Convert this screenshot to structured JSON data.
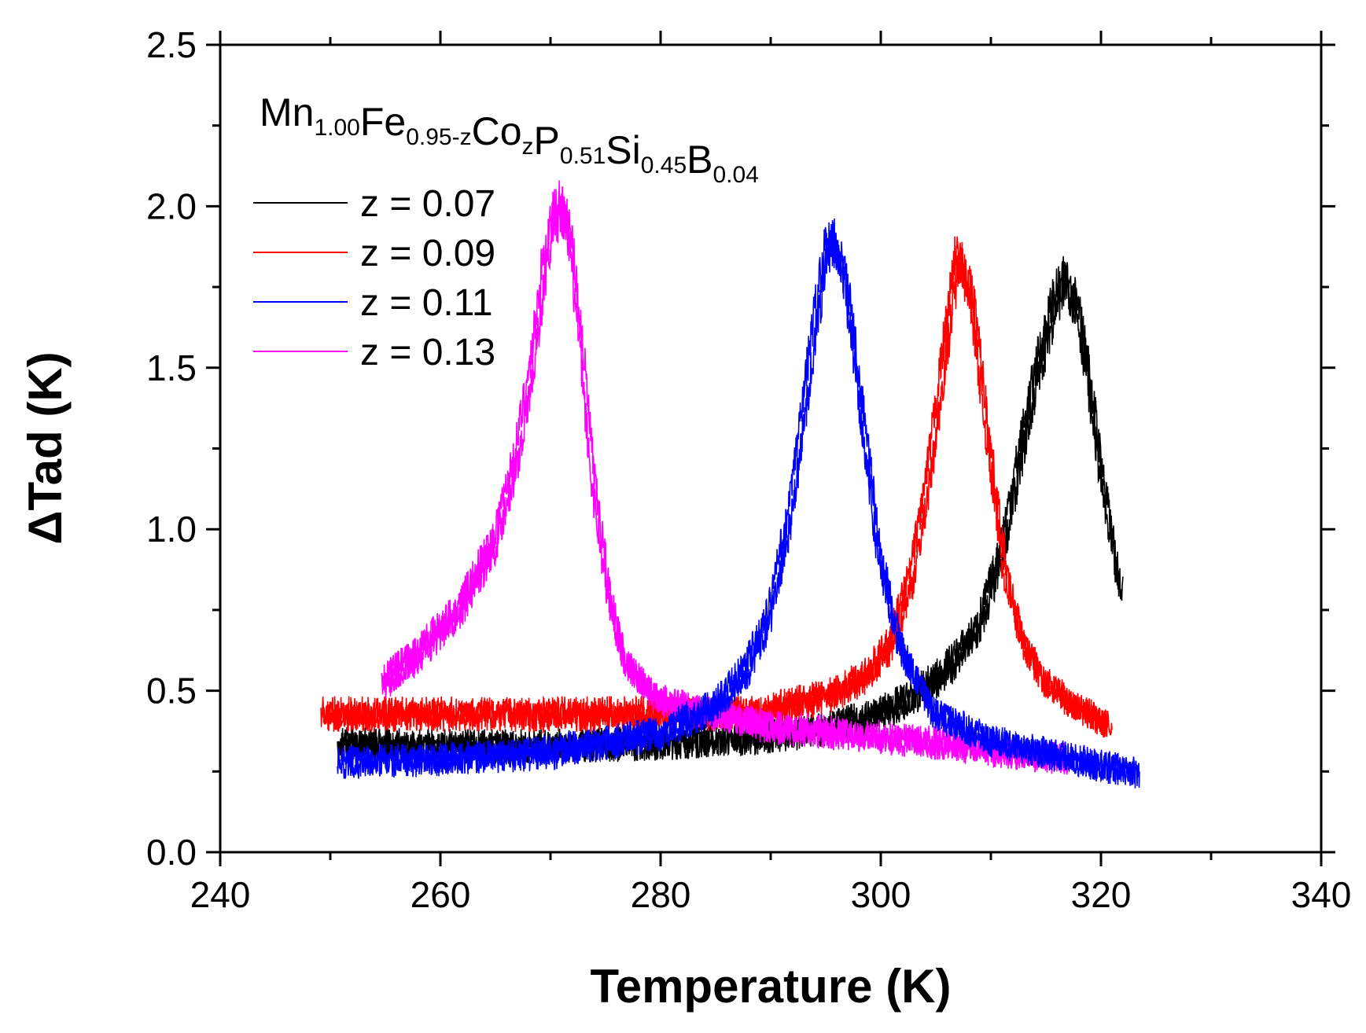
{
  "chart_data": {
    "type": "line",
    "title": "",
    "annotation": {
      "parts": [
        {
          "text": "Mn",
          "sub": "1.00"
        },
        {
          "text": "Fe",
          "sub": "0.95-z"
        },
        {
          "text": "Co",
          "sub": "z"
        },
        {
          "text": "P",
          "sub": "0.51"
        },
        {
          "text": "Si",
          "sub": "0.45"
        },
        {
          "text": "B",
          "sub": "0.04"
        }
      ]
    },
    "xlabel": "Temperature (K)",
    "ylabel": "ΔTad (K)",
    "xlim": [
      240,
      340
    ],
    "ylim": [
      0.0,
      2.5
    ],
    "xticks": [
      "240",
      "260",
      "280",
      "300",
      "320",
      "340"
    ],
    "yticks": [
      "0.0",
      "0.5",
      "1.0",
      "1.5",
      "2.0",
      "2.5"
    ],
    "legend_position": "top-left",
    "series": [
      {
        "name": "z = 0.07",
        "color": "#000000",
        "x": [
          251,
          260,
          270,
          280,
          290,
          296,
          300,
          303,
          306,
          309,
          311,
          313,
          314.5,
          316,
          317,
          318,
          319,
          320,
          321,
          322
        ],
        "y": [
          0.33,
          0.32,
          0.32,
          0.33,
          0.35,
          0.38,
          0.42,
          0.47,
          0.55,
          0.68,
          0.9,
          1.25,
          1.5,
          1.7,
          1.76,
          1.68,
          1.48,
          1.22,
          0.98,
          0.8
        ]
      },
      {
        "name": "z = 0.09",
        "color": "#ff0000",
        "x": [
          249.5,
          260,
          270,
          280,
          290,
          296,
          299,
          301,
          303,
          304.5,
          306,
          307.2,
          308.5,
          310,
          311.5,
          313,
          315,
          318,
          321
        ],
        "y": [
          0.42,
          0.42,
          0.42,
          0.42,
          0.43,
          0.48,
          0.54,
          0.63,
          0.85,
          1.15,
          1.55,
          1.85,
          1.7,
          1.25,
          0.85,
          0.65,
          0.52,
          0.44,
          0.38
        ]
      },
      {
        "name": "z = 0.11",
        "color": "#0000ff",
        "x": [
          251,
          260,
          270,
          280,
          285,
          288,
          290,
          292,
          293.5,
          295,
          295.8,
          297,
          298.5,
          300,
          302,
          305,
          310,
          315,
          320,
          323.5
        ],
        "y": [
          0.27,
          0.28,
          0.3,
          0.36,
          0.44,
          0.56,
          0.72,
          1.05,
          1.45,
          1.82,
          1.9,
          1.75,
          1.35,
          0.92,
          0.62,
          0.42,
          0.34,
          0.3,
          0.26,
          0.24
        ]
      },
      {
        "name": "z = 0.13",
        "color": "#ff00ff",
        "x": [
          255,
          258,
          262,
          265,
          267,
          268.5,
          269.5,
          270.5,
          271.2,
          272,
          273,
          274,
          275.5,
          277,
          280,
          285,
          290,
          300,
          310,
          317
        ],
        "y": [
          0.52,
          0.6,
          0.75,
          0.95,
          1.2,
          1.5,
          1.78,
          1.95,
          2.0,
          1.88,
          1.55,
          1.15,
          0.78,
          0.58,
          0.46,
          0.42,
          0.38,
          0.35,
          0.31,
          0.28
        ]
      }
    ]
  }
}
